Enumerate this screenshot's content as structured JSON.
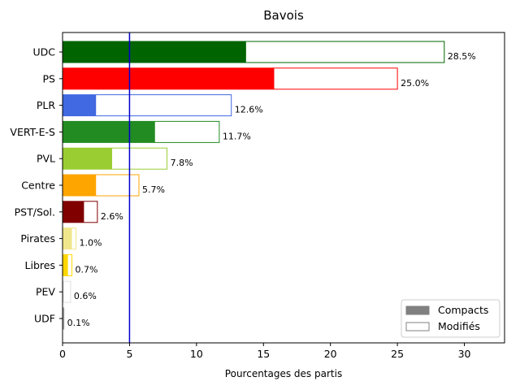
{
  "chart_data": {
    "type": "bar",
    "orientation": "horizontal",
    "title": "Bavois",
    "xlabel": "Pourcentages des partis",
    "ylabel": "",
    "xlim": [
      0,
      33
    ],
    "xticks": [
      0,
      5,
      10,
      15,
      20,
      25,
      30
    ],
    "threshold_line": {
      "x": 5,
      "color": "#0000cd"
    },
    "grid": false,
    "legend": {
      "placement": "bottom-right",
      "entries": [
        {
          "label": "Compacts",
          "style": "filled",
          "color": "#808080"
        },
        {
          "label": "Modifiés",
          "style": "outline",
          "color": "#808080"
        }
      ]
    },
    "parties": [
      {
        "name": "UDC",
        "compact": 13.7,
        "total": 28.5,
        "label": "28.5%",
        "color": "#006400"
      },
      {
        "name": "PS",
        "compact": 15.8,
        "total": 25.0,
        "label": "25.0%",
        "color": "#ff0000"
      },
      {
        "name": "PLR",
        "compact": 2.5,
        "total": 12.6,
        "label": "12.6%",
        "color": "#4169e1"
      },
      {
        "name": "VERT-E-S",
        "compact": 6.9,
        "total": 11.7,
        "label": "11.7%",
        "color": "#228b22"
      },
      {
        "name": "PVL",
        "compact": 3.7,
        "total": 7.8,
        "label": "7.8%",
        "color": "#9acd32"
      },
      {
        "name": "Centre",
        "compact": 2.5,
        "total": 5.7,
        "label": "5.7%",
        "color": "#ffa500"
      },
      {
        "name": "PST/Sol.",
        "compact": 1.6,
        "total": 2.6,
        "label": "2.6%",
        "color": "#800000"
      },
      {
        "name": "Pirates",
        "compact": 0.7,
        "total": 1.0,
        "label": "1.0%",
        "color": "#f0e68c"
      },
      {
        "name": "Libres",
        "compact": 0.4,
        "total": 0.7,
        "label": "0.7%",
        "color": "#ffd700"
      },
      {
        "name": "PEV",
        "compact": 0.1,
        "total": 0.6,
        "label": "0.6%",
        "color": "#e0e0e0"
      },
      {
        "name": "UDF",
        "compact": 0.1,
        "total": 0.1,
        "label": "0.1%",
        "color": "#a0a0a0"
      }
    ]
  }
}
